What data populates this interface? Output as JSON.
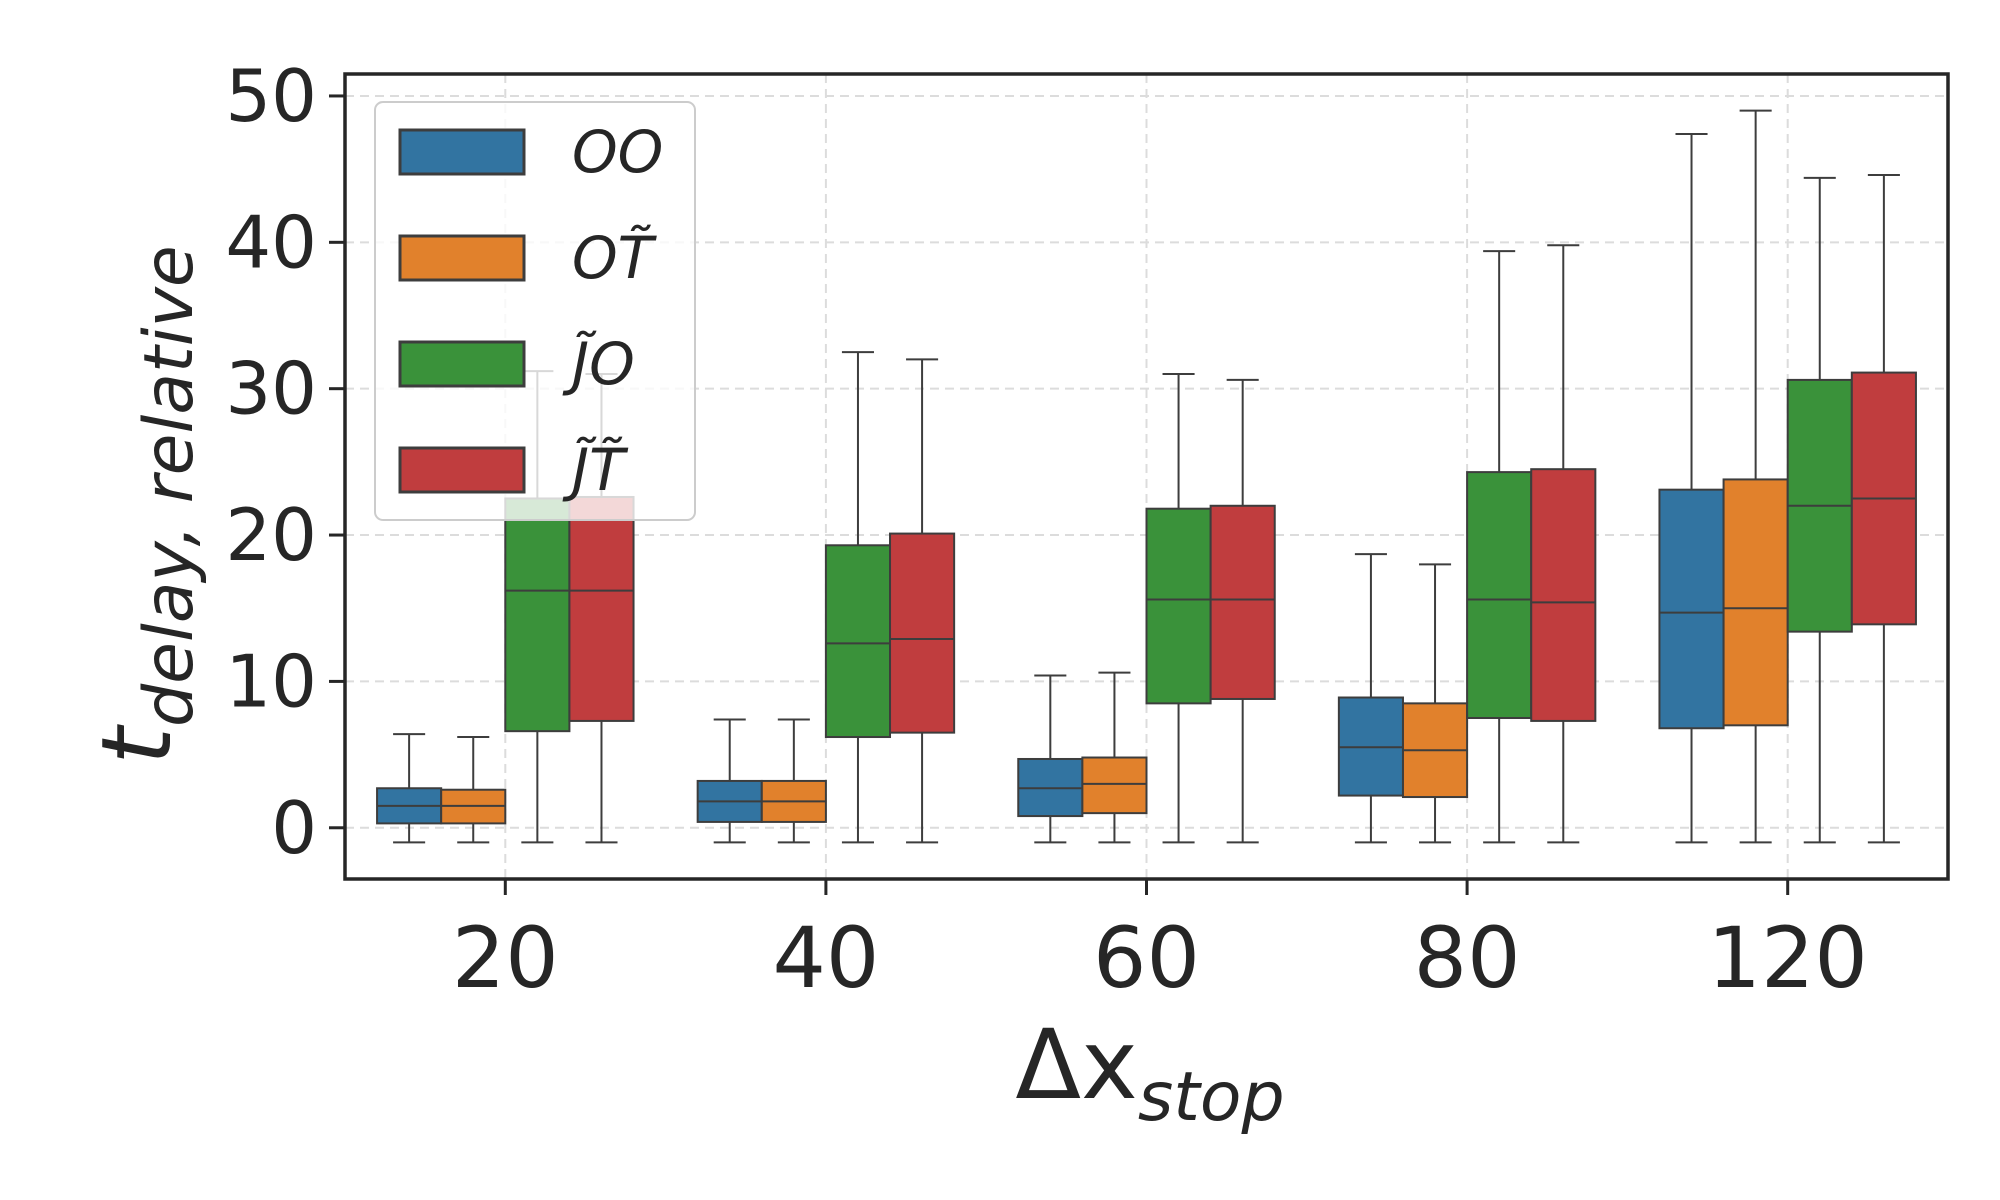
{
  "chart_data": {
    "type": "box",
    "xlabel_main": "Δx",
    "xlabel_sub": "stop",
    "ylabel_main": "t",
    "ylabel_sub": "delay, relative",
    "categories": [
      "20",
      "40",
      "60",
      "80",
      "120"
    ],
    "ylim": [
      -3.5,
      51.5
    ],
    "yticks": [
      0,
      10,
      20,
      30,
      40,
      50
    ],
    "grid": true,
    "legend_position": "upper-left",
    "series": [
      {
        "name": "OO",
        "color": "#3274a1",
        "boxes": [
          {
            "whislo": -1,
            "q1": 0.3,
            "med": 1.5,
            "q3": 2.7,
            "whishi": 6.4
          },
          {
            "whislo": -1,
            "q1": 0.4,
            "med": 1.8,
            "q3": 3.2,
            "whishi": 7.4
          },
          {
            "whislo": -1,
            "q1": 0.8,
            "med": 2.7,
            "q3": 4.7,
            "whishi": 10.4
          },
          {
            "whislo": -1,
            "q1": 2.2,
            "med": 5.5,
            "q3": 8.9,
            "whishi": 18.7
          },
          {
            "whislo": -1,
            "q1": 6.8,
            "med": 14.7,
            "q3": 23.1,
            "whishi": 47.4
          }
        ]
      },
      {
        "name": "OT̃",
        "color": "#e1812c",
        "boxes": [
          {
            "whislo": -1,
            "q1": 0.3,
            "med": 1.5,
            "q3": 2.6,
            "whishi": 6.2
          },
          {
            "whislo": -1,
            "q1": 0.4,
            "med": 1.8,
            "q3": 3.2,
            "whishi": 7.4
          },
          {
            "whislo": -1,
            "q1": 1.0,
            "med": 3.0,
            "q3": 4.8,
            "whishi": 10.6
          },
          {
            "whislo": -1,
            "q1": 2.1,
            "med": 5.3,
            "q3": 8.5,
            "whishi": 18.0
          },
          {
            "whislo": -1,
            "q1": 7.0,
            "med": 15.0,
            "q3": 23.8,
            "whishi": 49.0
          }
        ]
      },
      {
        "name": "J̃O",
        "color": "#3a923a",
        "boxes": [
          {
            "whislo": -1,
            "q1": 6.6,
            "med": 16.2,
            "q3": 22.5,
            "whishi": 31.2
          },
          {
            "whislo": -1,
            "q1": 6.2,
            "med": 12.6,
            "q3": 19.3,
            "whishi": 32.5
          },
          {
            "whislo": -1,
            "q1": 8.5,
            "med": 15.6,
            "q3": 21.8,
            "whishi": 31.0
          },
          {
            "whislo": -1,
            "q1": 7.5,
            "med": 15.6,
            "q3": 24.3,
            "whishi": 39.4
          },
          {
            "whislo": -1,
            "q1": 13.4,
            "med": 22.0,
            "q3": 30.6,
            "whishi": 44.4
          }
        ]
      },
      {
        "name": "J̃T̃",
        "color": "#c03d3e",
        "boxes": [
          {
            "whislo": -1,
            "q1": 7.3,
            "med": 16.2,
            "q3": 22.6,
            "whishi": 31.0
          },
          {
            "whislo": -1,
            "q1": 6.5,
            "med": 12.9,
            "q3": 20.1,
            "whishi": 32.0
          },
          {
            "whislo": -1,
            "q1": 8.8,
            "med": 15.6,
            "q3": 22.0,
            "whishi": 30.6
          },
          {
            "whislo": -1,
            "q1": 7.3,
            "med": 15.4,
            "q3": 24.5,
            "whishi": 39.8
          },
          {
            "whislo": -1,
            "q1": 13.9,
            "med": 22.5,
            "q3": 31.1,
            "whishi": 44.6
          }
        ]
      }
    ]
  }
}
